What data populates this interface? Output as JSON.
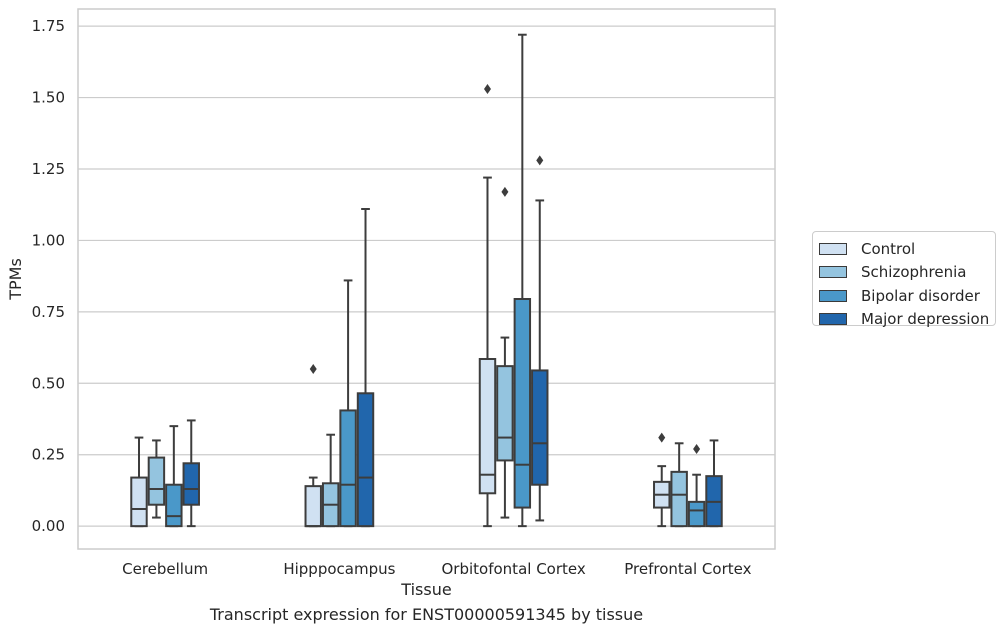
{
  "chart_data": {
    "type": "box",
    "caption": "Transcript expression for ENST00000591345 by tissue",
    "xlabel": "Tissue",
    "ylabel": "TPMs",
    "ylim": [
      -0.08,
      1.81
    ],
    "yticks": [
      0.0,
      0.25,
      0.5,
      0.75,
      1.0,
      1.25,
      1.5,
      1.75
    ],
    "ytick_labels": [
      "0.00",
      "0.25",
      "0.50",
      "0.75",
      "1.00",
      "1.25",
      "1.50",
      "1.75"
    ],
    "grid": true,
    "legend_position": "right",
    "categories": [
      "Cerebellum",
      "Hipppocampus",
      "Orbitofontal Cortex",
      "Prefrontal Cortex"
    ],
    "series": [
      {
        "name": "Control",
        "color": "#d0e1f2",
        "boxes": [
          {
            "min": 0.0,
            "q1": 0.0,
            "median": 0.06,
            "q3": 0.17,
            "max": 0.31,
            "outliers": []
          },
          {
            "min": 0.0,
            "q1": 0.0,
            "median": 0.0,
            "q3": 0.14,
            "max": 0.17,
            "outliers": [
              0.55
            ]
          },
          {
            "min": 0.0,
            "q1": 0.115,
            "median": 0.18,
            "q3": 0.585,
            "max": 1.22,
            "outliers": [
              1.53
            ]
          },
          {
            "min": 0.0,
            "q1": 0.065,
            "median": 0.11,
            "q3": 0.155,
            "max": 0.21,
            "outliers": [
              0.31
            ]
          }
        ]
      },
      {
        "name": "Schizophrenia",
        "color": "#94c4df",
        "boxes": [
          {
            "min": 0.03,
            "q1": 0.075,
            "median": 0.13,
            "q3": 0.24,
            "max": 0.3,
            "outliers": []
          },
          {
            "min": 0.0,
            "q1": 0.0,
            "median": 0.075,
            "q3": 0.15,
            "max": 0.32,
            "outliers": []
          },
          {
            "min": 0.03,
            "q1": 0.23,
            "median": 0.31,
            "q3": 0.56,
            "max": 0.66,
            "outliers": [
              1.17
            ]
          },
          {
            "min": 0.0,
            "q1": 0.0,
            "median": 0.11,
            "q3": 0.19,
            "max": 0.29,
            "outliers": []
          }
        ]
      },
      {
        "name": "Bipolar disorder",
        "color": "#4a98c9",
        "boxes": [
          {
            "min": 0.0,
            "q1": 0.0,
            "median": 0.035,
            "q3": 0.145,
            "max": 0.35,
            "outliers": []
          },
          {
            "min": 0.0,
            "q1": 0.0,
            "median": 0.145,
            "q3": 0.405,
            "max": 0.86,
            "outliers": []
          },
          {
            "min": 0.0,
            "q1": 0.065,
            "median": 0.215,
            "q3": 0.795,
            "max": 1.72,
            "outliers": []
          },
          {
            "min": 0.0,
            "q1": 0.0,
            "median": 0.055,
            "q3": 0.085,
            "max": 0.18,
            "outliers": [
              0.27
            ]
          }
        ]
      },
      {
        "name": "Major depression",
        "color": "#2166ac",
        "boxes": [
          {
            "min": 0.0,
            "q1": 0.075,
            "median": 0.13,
            "q3": 0.22,
            "max": 0.37,
            "outliers": []
          },
          {
            "min": 0.0,
            "q1": 0.0,
            "median": 0.17,
            "q3": 0.465,
            "max": 1.11,
            "outliers": []
          },
          {
            "min": 0.02,
            "q1": 0.145,
            "median": 0.29,
            "q3": 0.545,
            "max": 1.14,
            "outliers": [
              1.28
            ]
          },
          {
            "min": 0.0,
            "q1": 0.0,
            "median": 0.085,
            "q3": 0.175,
            "max": 0.3,
            "outliers": []
          }
        ]
      }
    ]
  }
}
